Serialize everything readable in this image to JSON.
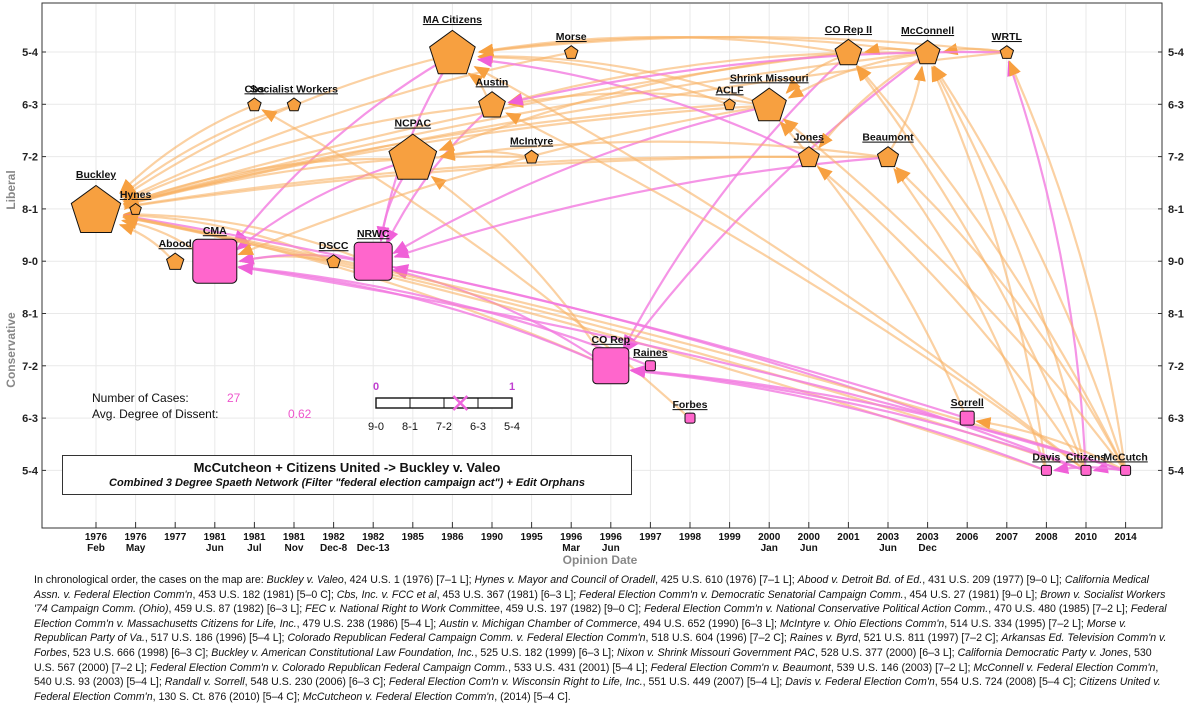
{
  "y_levels": [
    "5-4",
    "6-3",
    "7-2",
    "8-1",
    "9-0",
    "8-1",
    "7-2",
    "6-3",
    "5-4"
  ],
  "y_axis_top_label": "Liberal",
  "y_axis_bottom_label": "Conservative",
  "x_axis_title": "Opinion Date",
  "x_ticks": [
    {
      "year": "1976",
      "sub": "Feb"
    },
    {
      "year": "1976",
      "sub": "May"
    },
    {
      "year": "1977",
      "sub": ""
    },
    {
      "year": "1981",
      "sub": "Jun"
    },
    {
      "year": "1981",
      "sub": "Jul"
    },
    {
      "year": "1981",
      "sub": "Nov"
    },
    {
      "year": "1982",
      "sub": "Dec-8"
    },
    {
      "year": "1982",
      "sub": "Dec-13"
    },
    {
      "year": "1985",
      "sub": ""
    },
    {
      "year": "1986",
      "sub": ""
    },
    {
      "year": "1990",
      "sub": ""
    },
    {
      "year": "1995",
      "sub": ""
    },
    {
      "year": "1996",
      "sub": "Mar"
    },
    {
      "year": "1996",
      "sub": "Jun"
    },
    {
      "year": "1997",
      "sub": ""
    },
    {
      "year": "1998",
      "sub": ""
    },
    {
      "year": "1999",
      "sub": ""
    },
    {
      "year": "2000",
      "sub": "Jan"
    },
    {
      "year": "2000",
      "sub": "Jun"
    },
    {
      "year": "2001",
      "sub": ""
    },
    {
      "year": "2003",
      "sub": "Jun"
    },
    {
      "year": "2003",
      "sub": "Dec"
    },
    {
      "year": "2006",
      "sub": ""
    },
    {
      "year": "2007",
      "sub": ""
    },
    {
      "year": "2008",
      "sub": ""
    },
    {
      "year": "2010",
      "sub": ""
    },
    {
      "year": "2014",
      "sub": ""
    }
  ],
  "nodes": [
    {
      "id": "buckley",
      "label": "Buckley",
      "col": 0,
      "row": 3,
      "shape": "pentagon",
      "size": 26
    },
    {
      "id": "hynes",
      "label": "Hynes",
      "col": 1,
      "row": 3,
      "shape": "pentagon",
      "size": 6
    },
    {
      "id": "abood",
      "label": "Abood",
      "col": 2,
      "row": 4,
      "shape": "pentagon",
      "size": 9
    },
    {
      "id": "cma",
      "label": "CMA",
      "col": 3,
      "row": 4,
      "shape": "square",
      "size": 22
    },
    {
      "id": "cbs",
      "label": "Cbs",
      "col": 4,
      "row": 1,
      "shape": "pentagon",
      "size": 7
    },
    {
      "id": "socialist",
      "label": "Socialist Workers",
      "col": 5,
      "row": 1,
      "shape": "pentagon",
      "size": 7
    },
    {
      "id": "dscc",
      "label": "DSCC",
      "col": 6,
      "row": 4,
      "shape": "pentagon",
      "size": 7
    },
    {
      "id": "nrwc",
      "label": "NRWC",
      "col": 7,
      "row": 4,
      "shape": "square",
      "size": 19
    },
    {
      "id": "ncpac",
      "label": "NCPAC",
      "col": 8,
      "row": 2,
      "shape": "pentagon",
      "size": 25
    },
    {
      "id": "macitizens",
      "label": "MA Citizens",
      "col": 9,
      "row": 0,
      "shape": "pentagon",
      "size": 24
    },
    {
      "id": "austin",
      "label": "Austin",
      "col": 10,
      "row": 1,
      "shape": "pentagon",
      "size": 14
    },
    {
      "id": "mcintyre",
      "label": "McIntyre",
      "col": 11,
      "row": 2,
      "shape": "pentagon",
      "size": 7
    },
    {
      "id": "morse",
      "label": "Morse",
      "col": 12,
      "row": 0,
      "shape": "pentagon",
      "size": 7
    },
    {
      "id": "corep",
      "label": "CO Rep",
      "col": 13,
      "row": 6,
      "shape": "square",
      "size": 18
    },
    {
      "id": "raines",
      "label": "Raines",
      "col": 14,
      "row": 6,
      "shape": "square",
      "size": 5
    },
    {
      "id": "forbes",
      "label": "Forbes",
      "col": 15,
      "row": 7,
      "shape": "square",
      "size": 5
    },
    {
      "id": "aclf",
      "label": "ACLF",
      "col": 16,
      "row": 1,
      "shape": "pentagon",
      "size": 6
    },
    {
      "id": "shrink",
      "label": "Shrink Missouri",
      "col": 17,
      "row": 1,
      "shape": "pentagon",
      "size": 18
    },
    {
      "id": "jones",
      "label": "Jones",
      "col": 18,
      "row": 2,
      "shape": "pentagon",
      "size": 11
    },
    {
      "id": "corep2",
      "label": "CO Rep II",
      "col": 19,
      "row": 0,
      "shape": "pentagon",
      "size": 14
    },
    {
      "id": "beaumont",
      "label": "Beaumont",
      "col": 20,
      "row": 2,
      "shape": "pentagon",
      "size": 11
    },
    {
      "id": "mcconnell",
      "label": "McConnell",
      "col": 21,
      "row": 0,
      "shape": "pentagon",
      "size": 13
    },
    {
      "id": "sorrell",
      "label": "Sorrell",
      "col": 22,
      "row": 7,
      "shape": "square",
      "size": 7
    },
    {
      "id": "wrtl",
      "label": "WRTL",
      "col": 23,
      "row": 0,
      "shape": "pentagon",
      "size": 7
    },
    {
      "id": "davis",
      "label": "Davis",
      "col": 24,
      "row": 8,
      "shape": "square",
      "size": 5
    },
    {
      "id": "citizens",
      "label": "Citizens",
      "col": 25,
      "row": 8,
      "shape": "square",
      "size": 5
    },
    {
      "id": "mccutch",
      "label": "McCutch",
      "col": 26,
      "row": 8,
      "shape": "square",
      "size": 5
    }
  ],
  "edges": [
    [
      "hynes",
      "buckley",
      "o"
    ],
    [
      "abood",
      "buckley",
      "o"
    ],
    [
      "cma",
      "buckley",
      "o"
    ],
    [
      "cbs",
      "buckley",
      "o"
    ],
    [
      "socialist",
      "buckley",
      "o"
    ],
    [
      "dscc",
      "buckley",
      "o"
    ],
    [
      "dscc",
      "cma",
      "o"
    ],
    [
      "nrwc",
      "buckley",
      "o"
    ],
    [
      "nrwc",
      "cma",
      "p"
    ],
    [
      "ncpac",
      "buckley",
      "o"
    ],
    [
      "ncpac",
      "cma",
      "p"
    ],
    [
      "ncpac",
      "nrwc",
      "p"
    ],
    [
      "macitizens",
      "buckley",
      "o"
    ],
    [
      "macitizens",
      "nrwc",
      "p"
    ],
    [
      "macitizens",
      "cma",
      "p"
    ],
    [
      "austin",
      "buckley",
      "o"
    ],
    [
      "austin",
      "macitizens",
      "o"
    ],
    [
      "austin",
      "nrwc",
      "p"
    ],
    [
      "mcintyre",
      "buckley",
      "o"
    ],
    [
      "mcintyre",
      "ncpac",
      "o"
    ],
    [
      "morse",
      "buckley",
      "o"
    ],
    [
      "corep",
      "buckley",
      "o"
    ],
    [
      "corep",
      "cma",
      "p"
    ],
    [
      "corep",
      "ncpac",
      "o"
    ],
    [
      "corep",
      "nrwc",
      "p"
    ],
    [
      "raines",
      "cma",
      "p"
    ],
    [
      "forbes",
      "cbs",
      "o"
    ],
    [
      "aclf",
      "buckley",
      "o"
    ],
    [
      "aclf",
      "macitizens",
      "o"
    ],
    [
      "shrink",
      "buckley",
      "o"
    ],
    [
      "shrink",
      "cma",
      "o"
    ],
    [
      "shrink",
      "nrwc",
      "p"
    ],
    [
      "shrink",
      "macitizens",
      "o"
    ],
    [
      "shrink",
      "austin",
      "o"
    ],
    [
      "jones",
      "buckley",
      "o"
    ],
    [
      "jones",
      "macitizens",
      "p"
    ],
    [
      "corep2",
      "buckley",
      "o"
    ],
    [
      "corep2",
      "macitizens",
      "o"
    ],
    [
      "corep2",
      "corep",
      "p"
    ],
    [
      "corep2",
      "ncpac",
      "o"
    ],
    [
      "corep2",
      "shrink",
      "o"
    ],
    [
      "beaumont",
      "buckley",
      "o"
    ],
    [
      "beaumont",
      "ncpac",
      "o"
    ],
    [
      "beaumont",
      "nrwc",
      "p"
    ],
    [
      "beaumont",
      "mcconnell",
      "o"
    ],
    [
      "mcconnell",
      "buckley",
      "o"
    ],
    [
      "mcconnell",
      "macitizens",
      "o"
    ],
    [
      "mcconnell",
      "austin",
      "o"
    ],
    [
      "mcconnell",
      "corep",
      "p"
    ],
    [
      "mcconnell",
      "shrink",
      "o"
    ],
    [
      "mcconnell",
      "corep2",
      "o"
    ],
    [
      "mcconnell",
      "jones",
      "o"
    ],
    [
      "sorrell",
      "buckley",
      "p"
    ],
    [
      "sorrell",
      "shrink",
      "o"
    ],
    [
      "wrtl",
      "mcconnell",
      "o"
    ],
    [
      "wrtl",
      "macitizens",
      "o"
    ],
    [
      "wrtl",
      "austin",
      "p"
    ],
    [
      "wrtl",
      "buckley",
      "o"
    ],
    [
      "davis",
      "buckley",
      "o"
    ],
    [
      "davis",
      "mcconnell",
      "o"
    ],
    [
      "davis",
      "corep",
      "p"
    ],
    [
      "davis",
      "beaumont",
      "o"
    ],
    [
      "citizens",
      "buckley",
      "o"
    ],
    [
      "citizens",
      "mcconnell",
      "o"
    ],
    [
      "citizens",
      "austin",
      "o"
    ],
    [
      "citizens",
      "macitizens",
      "o"
    ],
    [
      "citizens",
      "corep2",
      "o"
    ],
    [
      "citizens",
      "wrtl",
      "p"
    ],
    [
      "citizens",
      "nrwc",
      "p"
    ],
    [
      "citizens",
      "jones",
      "o"
    ],
    [
      "citizens",
      "corep",
      "p"
    ],
    [
      "mccutch",
      "buckley",
      "o"
    ],
    [
      "mccutch",
      "citizens",
      "p"
    ],
    [
      "mccutch",
      "corep",
      "p"
    ],
    [
      "mccutch",
      "mcconnell",
      "o"
    ],
    [
      "mccutch",
      "corep2",
      "o"
    ],
    [
      "mccutch",
      "shrink",
      "o"
    ],
    [
      "mccutch",
      "beaumont",
      "o"
    ],
    [
      "mccutch",
      "sorrell",
      "o"
    ],
    [
      "mccutch",
      "davis",
      "p"
    ],
    [
      "mccutch",
      "cma",
      "p"
    ],
    [
      "mccutch",
      "wrtl",
      "o"
    ]
  ],
  "colors": {
    "orange": "#f7a040",
    "pink": "#ff66cc",
    "edge_orange": "#f9b266",
    "edge_pink": "#f27be0"
  },
  "stats": {
    "cases_label": "Number of Cases:",
    "cases_value": "27",
    "dissent_label": "Avg. Degree of Dissent:",
    "dissent_value": "0.62"
  },
  "scale": {
    "ticks": [
      "9-0",
      "8-1",
      "7-2",
      "6-3",
      "5-4"
    ],
    "end_low": "0",
    "end_high": "1",
    "marker_value": 0.62
  },
  "caption": {
    "title": "McCutcheon + Citizens United -> Buckley v. Valeo",
    "subtitle": "Combined 3 Degree Spaeth Network (Filter \"federal election campaign act\") + Edit Orphans"
  },
  "bottom_segments": [
    {
      "t": "In chronological order, the cases on the map are:  "
    },
    {
      "t": "Buckley v. Valeo",
      "i": true
    },
    {
      "t": ", 424 U.S. 1 (1976) [7–1 L];  "
    },
    {
      "t": "Hynes v. Mayor and Council of Oradell",
      "i": true
    },
    {
      "t": ", 425 U.S. 610 (1976) [7–1 L];  "
    },
    {
      "t": "Abood v. Detroit Bd. of Ed.",
      "i": true
    },
    {
      "t": ", 431 U.S. 209 (1977) [9–0 L];  "
    },
    {
      "t": "California Medical Assn. v. Federal Election Comm'n",
      "i": true
    },
    {
      "t": ", 453 U.S. 182 (1981) [5–0 C];  "
    },
    {
      "t": "Cbs, Inc. v. FCC et al",
      "i": true
    },
    {
      "t": ", 453 U.S. 367 (1981) [6–3 L];  "
    },
    {
      "t": "Federal Election Comm'n v. Democratic Senatorial Campaign Comm.",
      "i": true
    },
    {
      "t": ", 454 U.S. 27 (1981) [9–0 L];  "
    },
    {
      "t": "Brown v. Socialist Workers '74 Campaign Comm. (Ohio)",
      "i": true
    },
    {
      "t": ", 459 U.S. 87 (1982) [6–3 L];  "
    },
    {
      "t": "FEC v. National Right to Work Committee",
      "i": true
    },
    {
      "t": ", 459 U.S. 197 (1982) [9–0 C];  "
    },
    {
      "t": "Federal Election Comm'n v. National Conservative Political Action Comm.",
      "i": true
    },
    {
      "t": ", 470 U.S. 480 (1985) [7–2 L];  "
    },
    {
      "t": "Federal Election Comm'n v. Massachusetts Citizens for Life, Inc.",
      "i": true
    },
    {
      "t": ", 479 U.S. 238 (1986) [5–4 L];  "
    },
    {
      "t": "Austin v. Michigan Chamber of Commerce",
      "i": true
    },
    {
      "t": ", 494 U.S. 652 (1990) [6–3 L];  "
    },
    {
      "t": "McIntyre v. Ohio Elections Comm'n",
      "i": true
    },
    {
      "t": ", 514 U.S. 334 (1995) [7–2 L];  "
    },
    {
      "t": "Morse v. Republican Party of Va.",
      "i": true
    },
    {
      "t": ", 517 U.S. 186 (1996) [5–4 L];  "
    },
    {
      "t": "Colorado Republican Federal Campaign Comm. v. Federal Election Comm'n",
      "i": true
    },
    {
      "t": ", 518 U.S. 604 (1996) [7–2 C];  "
    },
    {
      "t": "Raines v. Byrd",
      "i": true
    },
    {
      "t": ", 521 U.S. 811 (1997) [7–2 C];  "
    },
    {
      "t": "Arkansas Ed. Television Comm'n v. Forbes",
      "i": true
    },
    {
      "t": ", 523 U.S. 666 (1998) [6–3 C];  "
    },
    {
      "t": "Buckley v. American Constitutional Law Foundation, Inc.",
      "i": true
    },
    {
      "t": ", 525 U.S. 182 (1999) [6–3 L];  "
    },
    {
      "t": "Nixon v. Shrink Missouri Government PAC",
      "i": true
    },
    {
      "t": ", 528 U.S. 377 (2000) [6–3 L];  "
    },
    {
      "t": "California Democratic Party v. Jones",
      "i": true
    },
    {
      "t": ", 530 U.S. 567 (2000) [7–2 L];  "
    },
    {
      "t": "Federal Election Comm'n v. Colorado Republican Federal Campaign Comm.",
      "i": true
    },
    {
      "t": ", 533 U.S. 431 (2001) [5–4 L];  "
    },
    {
      "t": "Federal Election Comm'n v. Beaumont",
      "i": true
    },
    {
      "t": ", 539 U.S. 146 (2003) [7–2 L];  "
    },
    {
      "t": "McConnell v. Federal Election Comm'n",
      "i": true
    },
    {
      "t": ", 540 U.S. 93 (2003) [5–4 L];  "
    },
    {
      "t": "Randall v. Sorrell",
      "i": true
    },
    {
      "t": ", 548 U.S. 230 (2006) [6–3 C];  "
    },
    {
      "t": "Federal Election Com'n v. Wisconsin Right to Life, Inc.",
      "i": true
    },
    {
      "t": ", 551 U.S. 449 (2007) [5–4 L];  "
    },
    {
      "t": "Davis v. Federal Election Com'n",
      "i": true
    },
    {
      "t": ", 554 U.S. 724 (2008) [5–4 C];  "
    },
    {
      "t": "Citizens United v. Federal Election Comm'n",
      "i": true
    },
    {
      "t": ", 130 S. Ct. 876 (2010) [5–4 C];  "
    },
    {
      "t": "McCutcheon v. Federal Election Comm'n",
      "i": true
    },
    {
      "t": ", (2014) [5–4 C]."
    }
  ]
}
